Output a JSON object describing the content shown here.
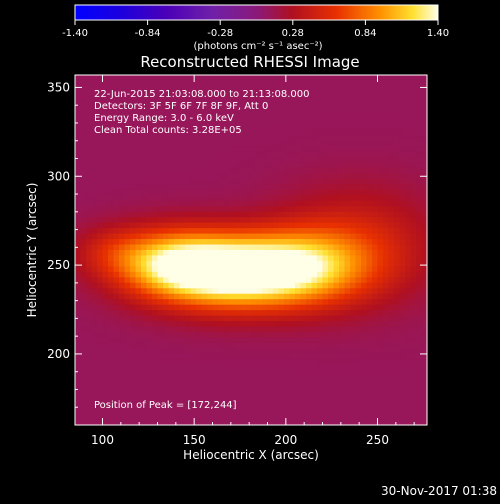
{
  "chart_data": {
    "type": "heatmap",
    "title": "Reconstructed RHESSI Image",
    "xlabel": "Heliocentric X (arcsec)",
    "ylabel": "Heliocentric Y (arcsec)",
    "xlim": [
      85,
      277
    ],
    "ylim": [
      160,
      357
    ],
    "x_ticks": [
      100,
      150,
      200,
      250
    ],
    "y_ticks": [
      200,
      250,
      300,
      350
    ],
    "info_lines": [
      "22-Jun-2015 21:03:08.000 to 21:13:08.000",
      "Detectors: 3F 5F 6F 7F 8F 9F, Att 0",
      "Energy Range: 3.0 - 6.0 keV",
      "Clean    Total counts: 3.28E+05"
    ],
    "peak_label": "Position of Peak = [172,244]",
    "peak": [
      172,
      244
    ],
    "colorbar": {
      "min": -1.4,
      "max": 1.4,
      "tick_labels": [
        "-1.40",
        "-0.84",
        "-0.28",
        "0.28",
        "0.84",
        "1.40"
      ],
      "tick_values": [
        -1.4,
        -0.84,
        -0.28,
        0.28,
        0.84,
        1.4
      ],
      "unit_label": "(photons cm⁻² s⁻¹ asec⁻²)"
    },
    "sources": [
      {
        "x": 172,
        "y": 246,
        "amp": 1.45,
        "sx": 32,
        "sy": 14
      },
      {
        "x": 138,
        "y": 252,
        "amp": 0.75,
        "sx": 22,
        "sy": 13
      },
      {
        "x": 212,
        "y": 250,
        "amp": 0.6,
        "sx": 26,
        "sy": 15
      },
      {
        "x": 240,
        "y": 262,
        "amp": 0.35,
        "sx": 30,
        "sy": 22
      },
      {
        "x": 105,
        "y": 258,
        "amp": 0.25,
        "sx": 15,
        "sy": 10
      }
    ],
    "background": 0.1
  },
  "footer_date": "30-Nov-2017 01:38"
}
